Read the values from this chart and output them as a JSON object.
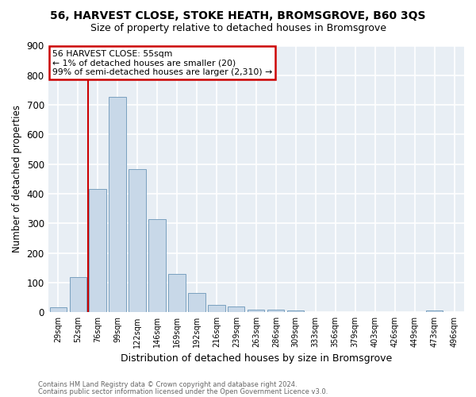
{
  "title": "56, HARVEST CLOSE, STOKE HEATH, BROMSGROVE, B60 3QS",
  "subtitle": "Size of property relative to detached houses in Bromsgrove",
  "xlabel": "Distribution of detached houses by size in Bromsgrove",
  "ylabel": "Number of detached properties",
  "bar_color": "#c8d8e8",
  "bar_edge_color": "#7aa0bf",
  "background_color": "#e8eef4",
  "grid_color": "white",
  "categories": [
    "29sqm",
    "52sqm",
    "76sqm",
    "99sqm",
    "122sqm",
    "146sqm",
    "169sqm",
    "192sqm",
    "216sqm",
    "239sqm",
    "263sqm",
    "286sqm",
    "309sqm",
    "333sqm",
    "356sqm",
    "379sqm",
    "403sqm",
    "426sqm",
    "449sqm",
    "473sqm",
    "496sqm"
  ],
  "values": [
    18,
    120,
    415,
    728,
    482,
    314,
    130,
    65,
    25,
    20,
    10,
    8,
    5,
    0,
    0,
    0,
    0,
    0,
    0,
    5,
    0
  ],
  "ylim": [
    0,
    900
  ],
  "yticks": [
    0,
    100,
    200,
    300,
    400,
    500,
    600,
    700,
    800,
    900
  ],
  "annotation_text": "56 HARVEST CLOSE: 55sqm\n← 1% of detached houses are smaller (20)\n99% of semi-detached houses are larger (2,310) →",
  "vline_x_index": 1.5,
  "annotation_box_color": "white",
  "annotation_border_color": "#cc0000",
  "footer_line1": "Contains HM Land Registry data © Crown copyright and database right 2024.",
  "footer_line2": "Contains public sector information licensed under the Open Government Licence v3.0."
}
